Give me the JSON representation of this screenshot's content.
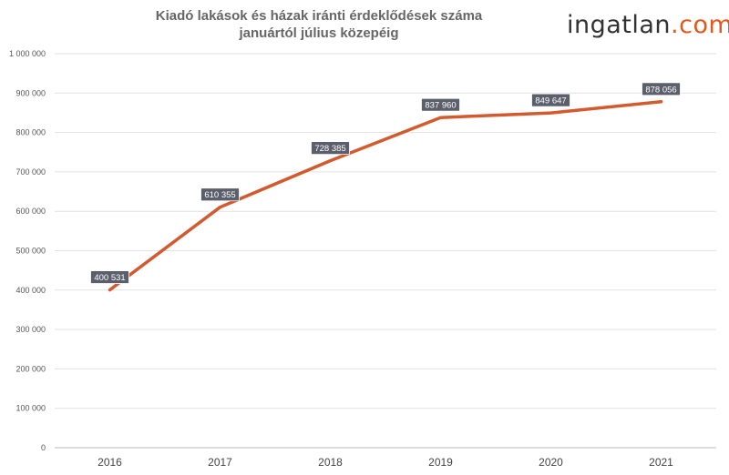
{
  "logo": {
    "part1": "ingatlan",
    "part2": ".com"
  },
  "chart_data": {
    "type": "line",
    "title": [
      "Kiadó lakások és házak iránti érdeklődések száma",
      "januártól július közepéig"
    ],
    "categories": [
      "2016",
      "2017",
      "2018",
      "2019",
      "2020",
      "2021"
    ],
    "series": [
      {
        "values": [
          400531,
          610355,
          728385,
          837960,
          849647,
          878056
        ],
        "labels": [
          "400 531",
          "610 355",
          "728 385",
          "837 960",
          "849 647",
          "878 056"
        ],
        "color": "#d25a2e"
      }
    ],
    "yticks": [
      0,
      100000,
      200000,
      300000,
      400000,
      500000,
      600000,
      700000,
      800000,
      900000,
      1000000
    ],
    "ytick_labels": [
      "0",
      "100 000",
      "200 000",
      "300 000",
      "400 000",
      "500 000",
      "600 000",
      "700 000",
      "800 000",
      "900 000",
      "1 000 000"
    ],
    "ylim": [
      0,
      1000000
    ],
    "grid": true,
    "label_box_color": "#5b5f6b"
  }
}
